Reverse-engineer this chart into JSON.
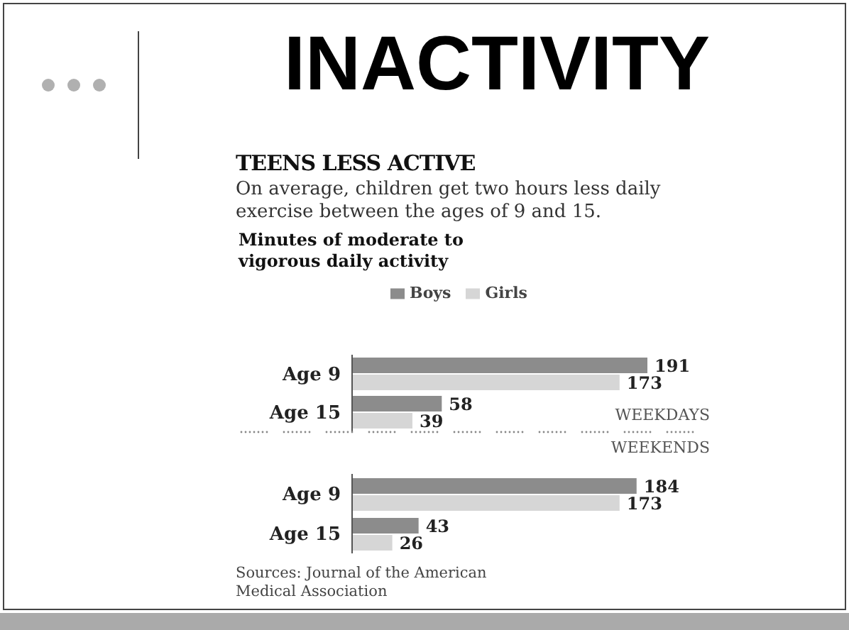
{
  "chart_data": {
    "type": "bar",
    "orientation": "horizontal",
    "title": "INACTIVITY",
    "subtitle": "TEENS LESS ACTIVE",
    "categories": [
      "Age 9",
      "Age 15",
      "Age 9",
      "Age 15"
    ],
    "series": [
      {
        "name": "Boys",
        "color": "#8c8c8c",
        "values": [
          191,
          58,
          184,
          43
        ]
      },
      {
        "name": "Girls",
        "color": "#d6d6d6",
        "values": [
          173,
          39,
          173,
          26
        ]
      }
    ],
    "data_labels": true,
    "legend": "top",
    "annotations": [
      "On average, children get two hours less daily exercise between the ages of 9 and 15.",
      "Minutes of moderate to vigorous daily activity",
      "WEEKDAYS",
      "WEEKENDS",
      "Sources: Journal of the American Medical Association"
    ]
  }
}
